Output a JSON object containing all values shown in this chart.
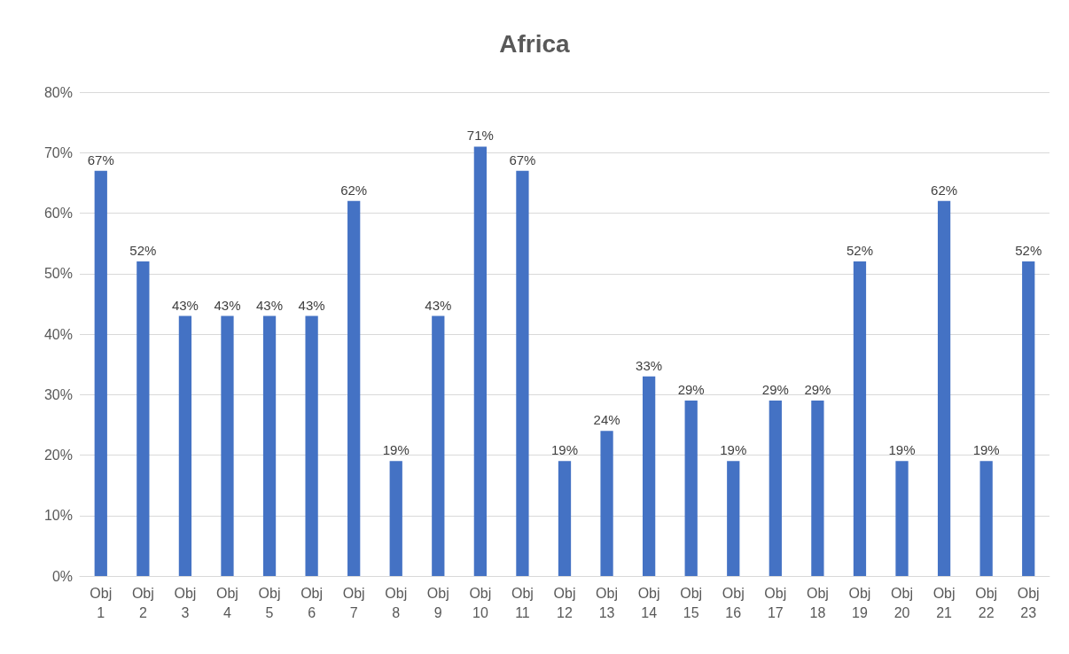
{
  "chart_data": {
    "type": "bar",
    "title": "Africa",
    "categories": [
      "Obj 1",
      "Obj 2",
      "Obj 3",
      "Obj 4",
      "Obj 5",
      "Obj 6",
      "Obj 7",
      "Obj 8",
      "Obj 9",
      "Obj 10",
      "Obj 11",
      "Obj 12",
      "Obj 13",
      "Obj 14",
      "Obj 15",
      "Obj 16",
      "Obj 17",
      "Obj 18",
      "Obj 19",
      "Obj 20",
      "Obj 21",
      "Obj 22",
      "Obj 23"
    ],
    "values": [
      67,
      52,
      43,
      43,
      43,
      43,
      62,
      19,
      43,
      71,
      67,
      19,
      24,
      33,
      29,
      19,
      29,
      29,
      52,
      19,
      62,
      19,
      52
    ],
    "value_labels": [
      "67%",
      "52%",
      "43%",
      "43%",
      "43%",
      "43%",
      "62%",
      "19%",
      "43%",
      "71%",
      "67%",
      "19%",
      "24%",
      "33%",
      "29%",
      "19%",
      "29%",
      "29%",
      "52%",
      "19%",
      "62%",
      "19%",
      "52%"
    ],
    "color": "#4472c4",
    "ylim": [
      0,
      80
    ],
    "yticks": [
      {
        "value": 0,
        "label": "0%"
      },
      {
        "value": 10,
        "label": "10%"
      },
      {
        "value": 20,
        "label": "20%"
      },
      {
        "value": 30,
        "label": "30%"
      },
      {
        "value": 40,
        "label": "40%"
      },
      {
        "value": 50,
        "label": "50%"
      },
      {
        "value": 60,
        "label": "60%"
      },
      {
        "value": 70,
        "label": "70%"
      },
      {
        "value": 80,
        "label": "80%"
      }
    ],
    "grid": "y"
  }
}
